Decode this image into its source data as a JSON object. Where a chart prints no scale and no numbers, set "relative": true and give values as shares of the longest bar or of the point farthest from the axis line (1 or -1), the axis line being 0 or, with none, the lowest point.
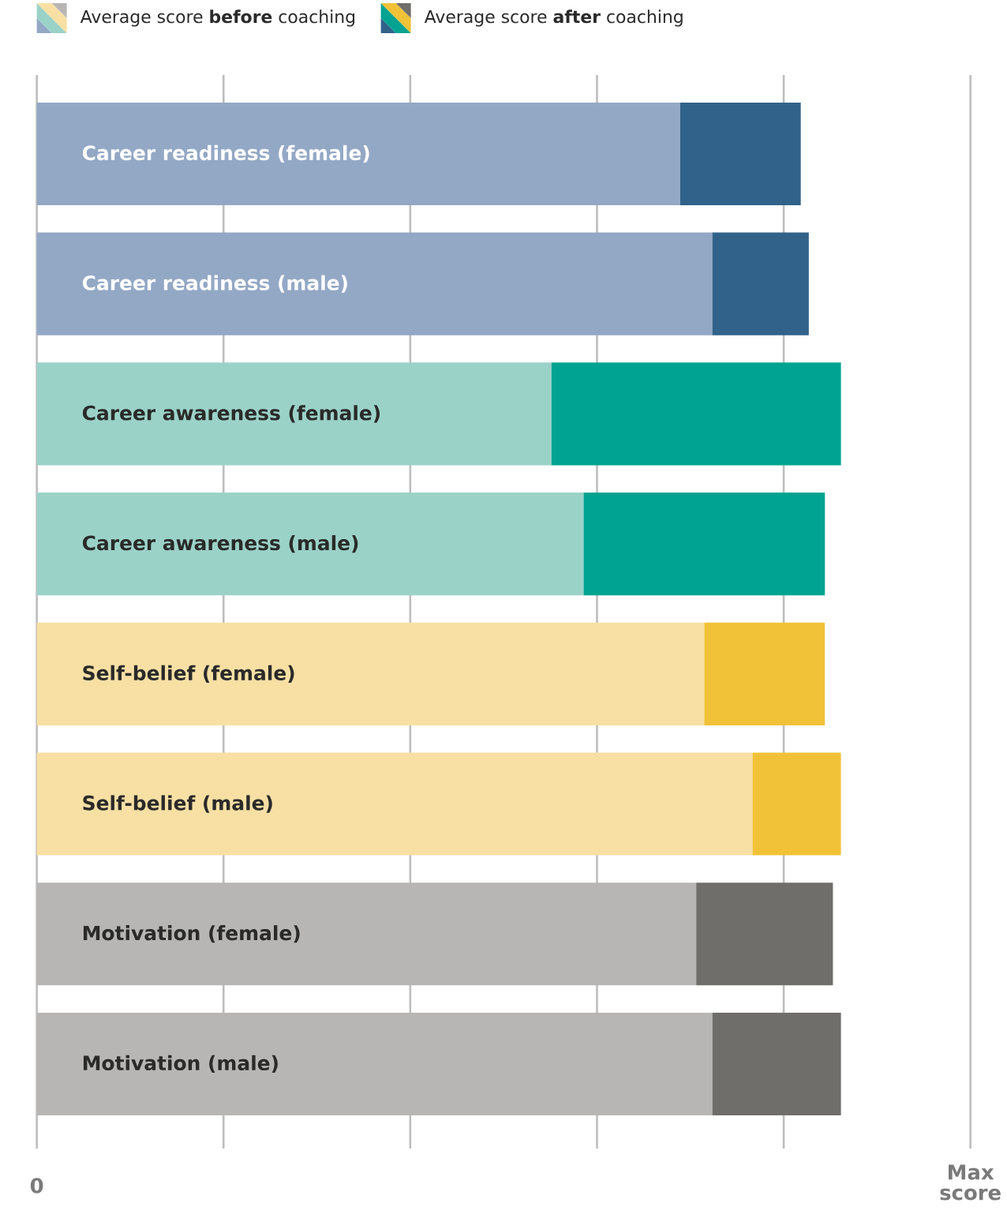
{
  "chart_data": {
    "type": "bar",
    "orientation": "horizontal",
    "stacked": true,
    "legend": "top left",
    "grid": "x",
    "categories": [
      "Career readiness (female)",
      "Career readiness (male)",
      "Career awareness (female)",
      "Career awareness (male)",
      "Self-belief (female)",
      "Self-belief (male)",
      "Motivation (female)",
      "Motivation (male)"
    ],
    "series": [
      {
        "name": "Average score **before** coaching",
        "colors": [
          "#93a8c5",
          "#93a8c5",
          "#9bd2c8",
          "#9bd2c8",
          "#f8e0a4",
          "#f8e0a4",
          "#b7b6b4",
          "#b7b6b4"
        ],
        "values": [
          0.8,
          0.84,
          0.64,
          0.68,
          0.83,
          0.89,
          0.82,
          0.84
        ]
      },
      {
        "name": "Average score **after** coaching",
        "colors": [
          "#316289",
          "#316289",
          "#00a391",
          "#00a391",
          "#f1c238",
          "#f1c238",
          "#6f6e6a",
          "#6f6e6a"
        ],
        "values": [
          0.15,
          0.12,
          0.36,
          0.3,
          0.15,
          0.11,
          0.17,
          0.16
        ]
      }
    ],
    "relative": true,
    "annotations": [
      "0",
      "Max score"
    ]
  }
}
